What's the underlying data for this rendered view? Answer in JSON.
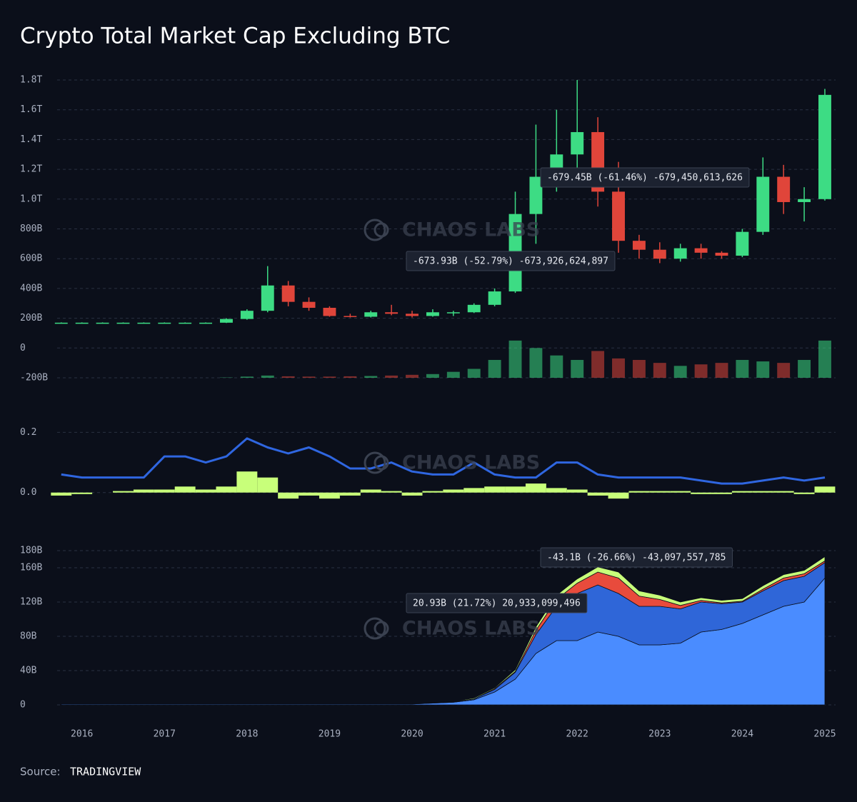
{
  "title": "Crypto Total Market Cap Excluding BTC",
  "watermark": "CHAOS LABS",
  "source_label": "Source:",
  "source": "TRADINGVIEW",
  "chart_data": [
    {
      "type": "candlestick",
      "x": [
        2015.75,
        2016.0,
        2016.25,
        2016.5,
        2016.75,
        2017.0,
        2017.25,
        2017.5,
        2017.75,
        2018.0,
        2018.25,
        2018.5,
        2018.75,
        2019.0,
        2019.25,
        2019.5,
        2019.75,
        2020.0,
        2020.25,
        2020.5,
        2020.75,
        2021.0,
        2021.25,
        2021.5,
        2021.75,
        2022.0,
        2022.25,
        2022.5,
        2022.75,
        2023.0,
        2023.25,
        2023.5,
        2023.75,
        2024.0,
        2024.25,
        2024.5,
        2024.75,
        2025.0
      ],
      "open": [
        170,
        170,
        170,
        170,
        170,
        170,
        170,
        170,
        170,
        195,
        250,
        420,
        310,
        270,
        215,
        210,
        240,
        230,
        215,
        240,
        240,
        290,
        380,
        900,
        1150,
        1300,
        1450,
        1050,
        720,
        660,
        600,
        670,
        640,
        620,
        780,
        1150,
        980,
        1000
      ],
      "high": [
        172,
        172,
        172,
        172,
        172,
        172,
        172,
        172,
        200,
        260,
        550,
        450,
        340,
        280,
        230,
        250,
        290,
        250,
        260,
        250,
        300,
        400,
        1050,
        1500,
        1600,
        1800,
        1550,
        1250,
        760,
        710,
        700,
        700,
        650,
        800,
        1280,
        1230,
        1080,
        1740
      ],
      "low": [
        168,
        168,
        168,
        168,
        168,
        168,
        168,
        168,
        168,
        190,
        240,
        280,
        250,
        210,
        205,
        205,
        220,
        205,
        210,
        215,
        235,
        280,
        370,
        700,
        1050,
        1200,
        950,
        640,
        600,
        570,
        580,
        600,
        600,
        610,
        760,
        900,
        850,
        990
      ],
      "close": [
        170,
        170,
        170,
        170,
        170,
        170,
        170,
        170,
        195,
        250,
        420,
        310,
        270,
        215,
        210,
        240,
        230,
        215,
        240,
        240,
        290,
        380,
        900,
        1150,
        1300,
        1450,
        1050,
        720,
        660,
        600,
        670,
        640,
        620,
        780,
        1150,
        980,
        1000,
        1700
      ],
      "volume": [
        0,
        0,
        0,
        0,
        0,
        0,
        0,
        0,
        2,
        8,
        15,
        10,
        8,
        8,
        10,
        12,
        15,
        20,
        25,
        40,
        60,
        120,
        250,
        200,
        150,
        120,
        180,
        130,
        120,
        100,
        80,
        90,
        100,
        120,
        110,
        100,
        120,
        250
      ],
      "up_color": "#3ddc84",
      "down_color": "#e0453a",
      "xlim": [
        2015.7,
        2025.13
      ],
      "ylim": [
        -200,
        1800
      ],
      "yticks": [
        {
          "value": -200,
          "label": "-200B"
        },
        0,
        {
          "value": 200,
          "label": "200B"
        },
        {
          "value": 400,
          "label": "400B"
        },
        {
          "value": 600,
          "label": "600B"
        },
        {
          "value": 800,
          "label": "800B"
        },
        {
          "value": 1000,
          "label": "1.0T"
        },
        {
          "value": 1200,
          "label": "1.2T"
        },
        {
          "value": 1400,
          "label": "1.4T"
        },
        {
          "value": 1600,
          "label": "1.6T"
        },
        {
          "value": 1800,
          "label": "1.8T"
        }
      ],
      "grid": true,
      "annotations": [
        "-679.45B (-61.46%) -679,450,613,626",
        "-673.93B (-52.79%) -673,926,624,897"
      ]
    },
    {
      "type": "line",
      "x": [
        2015.75,
        2016.0,
        2016.25,
        2016.5,
        2016.75,
        2017.0,
        2017.25,
        2017.5,
        2017.75,
        2018.0,
        2018.25,
        2018.5,
        2018.75,
        2019.0,
        2019.25,
        2019.5,
        2019.75,
        2020.0,
        2020.25,
        2020.5,
        2020.75,
        2021.0,
        2021.25,
        2021.5,
        2021.75,
        2022.0,
        2022.25,
        2022.5,
        2022.75,
        2023.0,
        2023.25,
        2023.5,
        2023.75,
        2024.0,
        2024.25,
        2024.5,
        2024.75,
        2025.0
      ],
      "series": [
        {
          "type": "bar",
          "color": "#c8ff7a",
          "values": [
            -0.01,
            -0.005,
            0,
            0.005,
            0.01,
            0.01,
            0.02,
            0.01,
            0.02,
            0.07,
            0.05,
            -0.02,
            -0.01,
            -0.02,
            -0.01,
            0.01,
            0.005,
            -0.01,
            0.005,
            0.01,
            0.015,
            0.02,
            0.02,
            0.03,
            0.015,
            0.01,
            -0.01,
            -0.02,
            0.005,
            0.005,
            0.005,
            -0.005,
            -0.005,
            0.005,
            0.005,
            0.005,
            -0.005,
            0.02
          ]
        },
        {
          "type": "line",
          "color": "#2f66e0",
          "values": [
            0.06,
            0.05,
            0.05,
            0.05,
            0.05,
            0.12,
            0.12,
            0.1,
            0.12,
            0.18,
            0.15,
            0.13,
            0.15,
            0.12,
            0.08,
            0.08,
            0.1,
            0.07,
            0.06,
            0.06,
            0.1,
            0.06,
            0.05,
            0.05,
            0.1,
            0.1,
            0.06,
            0.05,
            0.05,
            0.05,
            0.05,
            0.04,
            0.03,
            0.03,
            0.04,
            0.05,
            0.04,
            0.05
          ]
        }
      ],
      "xlim": [
        2015.7,
        2025.13
      ],
      "ylim": [
        -0.06,
        0.22
      ],
      "yticks": [
        {
          "value": 0,
          "label": "0.0"
        },
        0.2
      ],
      "grid": true
    },
    {
      "type": "area",
      "stacked": true,
      "x": [
        2015.75,
        2016.0,
        2016.25,
        2016.5,
        2016.75,
        2017.0,
        2017.25,
        2017.5,
        2017.75,
        2018.0,
        2018.25,
        2018.5,
        2018.75,
        2019.0,
        2019.25,
        2019.5,
        2019.75,
        2020.0,
        2020.25,
        2020.5,
        2020.75,
        2021.0,
        2021.25,
        2021.5,
        2021.75,
        2022.0,
        2022.25,
        2022.5,
        2022.75,
        2023.0,
        2023.25,
        2023.5,
        2023.75,
        2024.0,
        2024.25,
        2024.5,
        2024.75,
        2025.0
      ],
      "series": [
        {
          "color": "#4a8cff",
          "values": [
            1,
            1,
            1,
            1,
            1,
            1,
            1,
            1,
            1,
            1,
            1,
            1,
            1,
            1,
            1,
            1,
            1,
            1,
            2,
            3,
            6,
            15,
            30,
            60,
            75,
            75,
            85,
            80,
            70,
            70,
            72,
            85,
            88,
            95,
            105,
            115,
            120,
            148
          ]
        },
        {
          "color": "#2f66d8",
          "values": [
            0.3,
            0.3,
            0.3,
            0.3,
            0.3,
            0.3,
            0.3,
            0.3,
            0.3,
            0.3,
            0.3,
            0.3,
            0.3,
            0.3,
            0.3,
            0.3,
            0.3,
            0.3,
            0.3,
            0.5,
            1,
            3,
            8,
            22,
            40,
            55,
            55,
            50,
            45,
            45,
            40,
            35,
            30,
            25,
            28,
            30,
            30,
            18
          ]
        },
        {
          "color": "#e84b3c",
          "values": [
            0,
            0,
            0,
            0,
            0,
            0,
            0,
            0,
            0,
            0,
            0,
            0,
            0,
            0,
            0,
            0,
            0,
            0,
            0,
            0,
            0,
            1,
            1,
            5,
            8,
            12,
            15,
            18,
            12,
            8,
            4,
            2,
            1,
            1,
            2,
            3,
            3,
            2
          ]
        },
        {
          "color": "#c8ff7a",
          "values": [
            0.2,
            0.2,
            0.2,
            0.2,
            0.2,
            0.2,
            0.2,
            0.2,
            0.2,
            0.2,
            0.2,
            0.2,
            0.2,
            0.2,
            0.2,
            0.2,
            0.2,
            0.2,
            0.2,
            0.5,
            1,
            1,
            2,
            4,
            5,
            5,
            6,
            7,
            6,
            5,
            4,
            3,
            3,
            3,
            4,
            4,
            4,
            5
          ]
        }
      ],
      "xlim": [
        2015.7,
        2025.13
      ],
      "ylim": [
        0,
        180
      ],
      "yticks": [
        0,
        {
          "value": 40,
          "label": "40B"
        },
        {
          "value": 80,
          "label": "80B"
        },
        {
          "value": 120,
          "label": "120B"
        },
        {
          "value": 160,
          "label": "160B"
        },
        {
          "value": 180,
          "label": "180B"
        }
      ],
      "xticks": [
        2016,
        2017,
        2018,
        2019,
        2020,
        2021,
        2022,
        2023,
        2024,
        2025
      ],
      "grid": true,
      "annotations": [
        "-43.1B (-26.66%) -43,097,557,785",
        "20.93B (21.72%) 20,933,099,496"
      ]
    }
  ]
}
